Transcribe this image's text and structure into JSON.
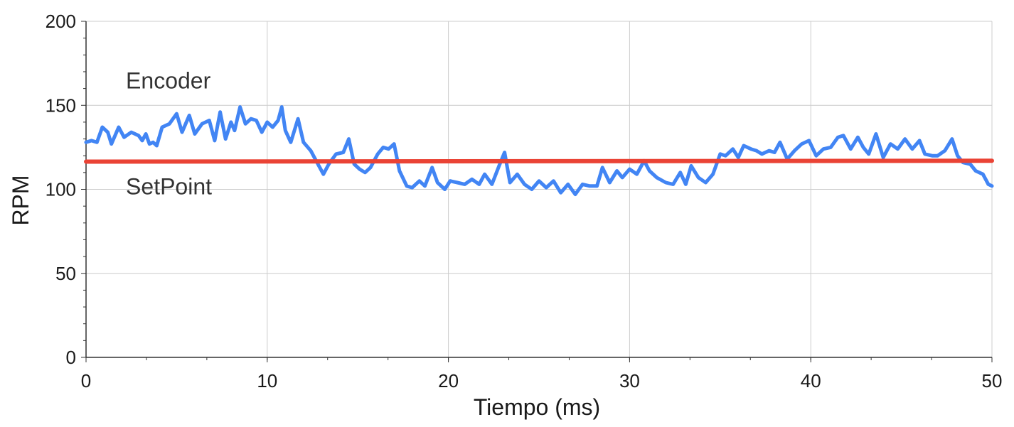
{
  "chart_data": {
    "type": "line",
    "title": "",
    "xlabel": "Tiempo (ms)",
    "ylabel": "RPM",
    "xlim": [
      0,
      50
    ],
    "ylim": [
      0,
      200
    ],
    "x_ticks": [
      0,
      10,
      20,
      30,
      40,
      50
    ],
    "y_ticks": [
      0,
      50,
      100,
      150,
      200
    ],
    "x_tick_labels": [
      "0",
      "10",
      "20",
      "30",
      "40",
      "50"
    ],
    "y_tick_labels": [
      "0",
      "50",
      "100",
      "150",
      "200"
    ],
    "grid": true,
    "legend": "none",
    "series": [
      {
        "name": "Encoder",
        "color": "#4285f4",
        "points": [
          [
            0,
            128
          ],
          [
            0.3,
            129
          ],
          [
            0.6,
            128
          ],
          [
            0.9,
            137
          ],
          [
            1.2,
            134
          ],
          [
            1.4,
            127
          ],
          [
            1.8,
            137
          ],
          [
            2.1,
            131
          ],
          [
            2.5,
            134
          ],
          [
            2.9,
            132
          ],
          [
            3.1,
            129
          ],
          [
            3.3,
            133
          ],
          [
            3.5,
            127
          ],
          [
            3.7,
            128
          ],
          [
            3.9,
            126
          ],
          [
            4.2,
            137
          ],
          [
            4.6,
            139
          ],
          [
            5.0,
            145
          ],
          [
            5.3,
            134
          ],
          [
            5.7,
            144
          ],
          [
            6.0,
            133
          ],
          [
            6.4,
            139
          ],
          [
            6.8,
            141
          ],
          [
            7.1,
            129
          ],
          [
            7.4,
            146
          ],
          [
            7.7,
            130
          ],
          [
            8.0,
            140
          ],
          [
            8.2,
            135
          ],
          [
            8.5,
            149
          ],
          [
            8.8,
            139
          ],
          [
            9.1,
            142
          ],
          [
            9.4,
            141
          ],
          [
            9.7,
            134
          ],
          [
            10.0,
            140
          ],
          [
            10.3,
            137
          ],
          [
            10.6,
            141
          ],
          [
            10.8,
            149
          ],
          [
            11.0,
            135
          ],
          [
            11.3,
            128
          ],
          [
            11.7,
            142
          ],
          [
            12.0,
            128
          ],
          [
            12.4,
            123
          ],
          [
            12.7,
            117
          ],
          [
            13.1,
            109
          ],
          [
            13.4,
            115
          ],
          [
            13.8,
            121
          ],
          [
            14.2,
            122
          ],
          [
            14.5,
            130
          ],
          [
            14.8,
            115
          ],
          [
            15.1,
            112
          ],
          [
            15.4,
            110
          ],
          [
            15.7,
            113
          ],
          [
            16.1,
            121
          ],
          [
            16.4,
            125
          ],
          [
            16.7,
            124
          ],
          [
            17.0,
            127
          ],
          [
            17.3,
            111
          ],
          [
            17.7,
            102
          ],
          [
            18.0,
            101
          ],
          [
            18.4,
            105
          ],
          [
            18.7,
            102
          ],
          [
            19.1,
            113
          ],
          [
            19.4,
            104
          ],
          [
            19.8,
            100
          ],
          [
            20.1,
            105
          ],
          [
            20.5,
            104
          ],
          [
            20.9,
            103
          ],
          [
            21.3,
            106
          ],
          [
            21.7,
            103
          ],
          [
            22.0,
            109
          ],
          [
            22.4,
            103
          ],
          [
            22.8,
            114
          ],
          [
            23.1,
            122
          ],
          [
            23.4,
            104
          ],
          [
            23.8,
            109
          ],
          [
            24.2,
            103
          ],
          [
            24.6,
            100
          ],
          [
            25.0,
            105
          ],
          [
            25.4,
            101
          ],
          [
            25.8,
            105
          ],
          [
            26.2,
            98
          ],
          [
            26.6,
            103
          ],
          [
            27.0,
            97
          ],
          [
            27.4,
            103
          ],
          [
            27.8,
            102
          ],
          [
            28.2,
            102
          ],
          [
            28.5,
            113
          ],
          [
            28.9,
            104
          ],
          [
            29.3,
            111
          ],
          [
            29.6,
            107
          ],
          [
            30.0,
            112
          ],
          [
            30.4,
            109
          ],
          [
            30.8,
            117
          ],
          [
            31.1,
            111
          ],
          [
            31.5,
            107
          ],
          [
            32.0,
            104
          ],
          [
            32.4,
            103
          ],
          [
            32.8,
            110
          ],
          [
            33.1,
            103
          ],
          [
            33.4,
            114
          ],
          [
            33.8,
            107
          ],
          [
            34.2,
            104
          ],
          [
            34.6,
            109
          ],
          [
            35.0,
            121
          ],
          [
            35.3,
            120
          ],
          [
            35.7,
            124
          ],
          [
            36.0,
            119
          ],
          [
            36.3,
            126
          ],
          [
            36.7,
            124
          ],
          [
            37.0,
            123
          ],
          [
            37.3,
            121
          ],
          [
            37.7,
            123
          ],
          [
            38.0,
            122
          ],
          [
            38.3,
            128
          ],
          [
            38.7,
            118
          ],
          [
            39.1,
            123
          ],
          [
            39.5,
            127
          ],
          [
            39.9,
            129
          ],
          [
            40.3,
            120
          ],
          [
            40.7,
            124
          ],
          [
            41.1,
            125
          ],
          [
            41.5,
            131
          ],
          [
            41.8,
            132
          ],
          [
            42.2,
            124
          ],
          [
            42.6,
            131
          ],
          [
            42.9,
            125
          ],
          [
            43.2,
            121
          ],
          [
            43.6,
            133
          ],
          [
            44.0,
            119
          ],
          [
            44.4,
            127
          ],
          [
            44.8,
            124
          ],
          [
            45.2,
            130
          ],
          [
            45.6,
            124
          ],
          [
            46.0,
            129
          ],
          [
            46.3,
            121
          ],
          [
            46.7,
            120
          ],
          [
            47.0,
            120
          ],
          [
            47.4,
            123
          ],
          [
            47.8,
            130
          ],
          [
            48.1,
            120
          ],
          [
            48.4,
            116
          ],
          [
            48.8,
            115
          ],
          [
            49.1,
            111
          ],
          [
            49.5,
            109
          ],
          [
            49.8,
            103
          ],
          [
            50.0,
            102
          ]
        ]
      },
      {
        "name": "SetPoint",
        "color": "#ea4335",
        "points": [
          [
            0,
            116.5
          ],
          [
            50,
            117
          ]
        ]
      }
    ],
    "annotations": [
      {
        "text": "Encoder",
        "x": 2.2,
        "y": 160
      },
      {
        "text": "SetPoint",
        "x": 2.2,
        "y": 97
      }
    ]
  }
}
